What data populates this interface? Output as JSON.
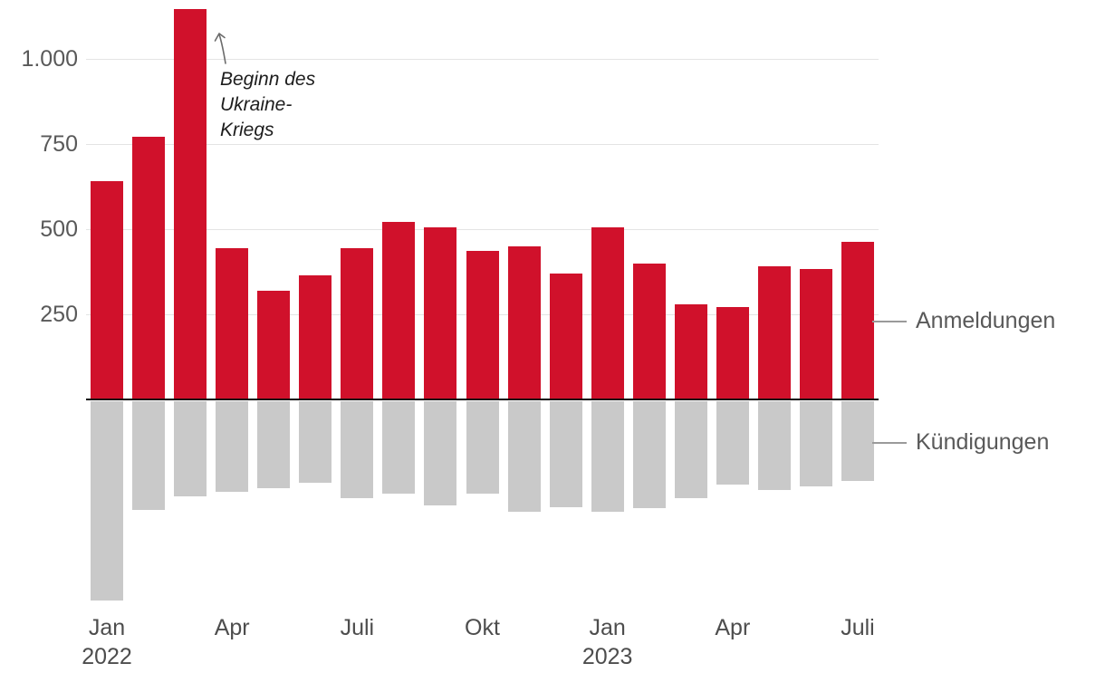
{
  "chart_data": {
    "type": "bar",
    "title": "",
    "categories": [
      "Jan 2022",
      "Feb 2022",
      "Mär 2022",
      "Apr 2022",
      "Mai 2022",
      "Jun 2022",
      "Jul 2022",
      "Aug 2022",
      "Sep 2022",
      "Okt 2022",
      "Nov 2022",
      "Dez 2022",
      "Jan 2023",
      "Feb 2023",
      "Mär 2023",
      "Apr 2023",
      "Mai 2023",
      "Jun 2023",
      "Jul 2023"
    ],
    "series": [
      {
        "name": "Anmeldungen",
        "color": "#d0112b",
        "direction": "up",
        "values": [
          640,
          770,
          1145,
          445,
          320,
          365,
          445,
          520,
          505,
          435,
          450,
          370,
          505,
          400,
          278,
          272,
          390,
          383,
          462
        ]
      },
      {
        "name": "Kündigungen",
        "color": "#c9c9c9",
        "direction": "down",
        "values": [
          585,
          320,
          280,
          265,
          255,
          240,
          285,
          270,
          305,
          270,
          325,
          310,
          325,
          315,
          285,
          245,
          260,
          250,
          235
        ]
      }
    ],
    "y_axis": {
      "ticks": [
        {
          "value": 250,
          "label": "250"
        },
        {
          "value": 500,
          "label": "500"
        },
        {
          "value": 750,
          "label": "750"
        },
        {
          "value": 1000,
          "label": "1.000"
        }
      ]
    },
    "x_axis": {
      "ticks": [
        {
          "index": 0,
          "line1": "Jan",
          "line2": "2022"
        },
        {
          "index": 3,
          "line1": "Apr"
        },
        {
          "index": 6,
          "line1": "Juli"
        },
        {
          "index": 9,
          "line1": "Okt"
        },
        {
          "index": 12,
          "line1": "Jan",
          "line2": "2023"
        },
        {
          "index": 15,
          "line1": "Apr"
        },
        {
          "index": 18,
          "line1": "Juli"
        }
      ]
    },
    "annotation": {
      "lines": [
        "Beginn des",
        "Ukraine-",
        "Kriegs"
      ],
      "target_category": "Mär 2022"
    },
    "ylim": [
      -600,
      1150
    ],
    "grid": "horizontal",
    "legend_position": "right"
  },
  "colors": {
    "grid": "#e4e4e4",
    "axis_text": "#595959",
    "zero_line": "#111111",
    "annotation_text": "#1d1d1d",
    "legend_tick": "#9a9a9a"
  }
}
